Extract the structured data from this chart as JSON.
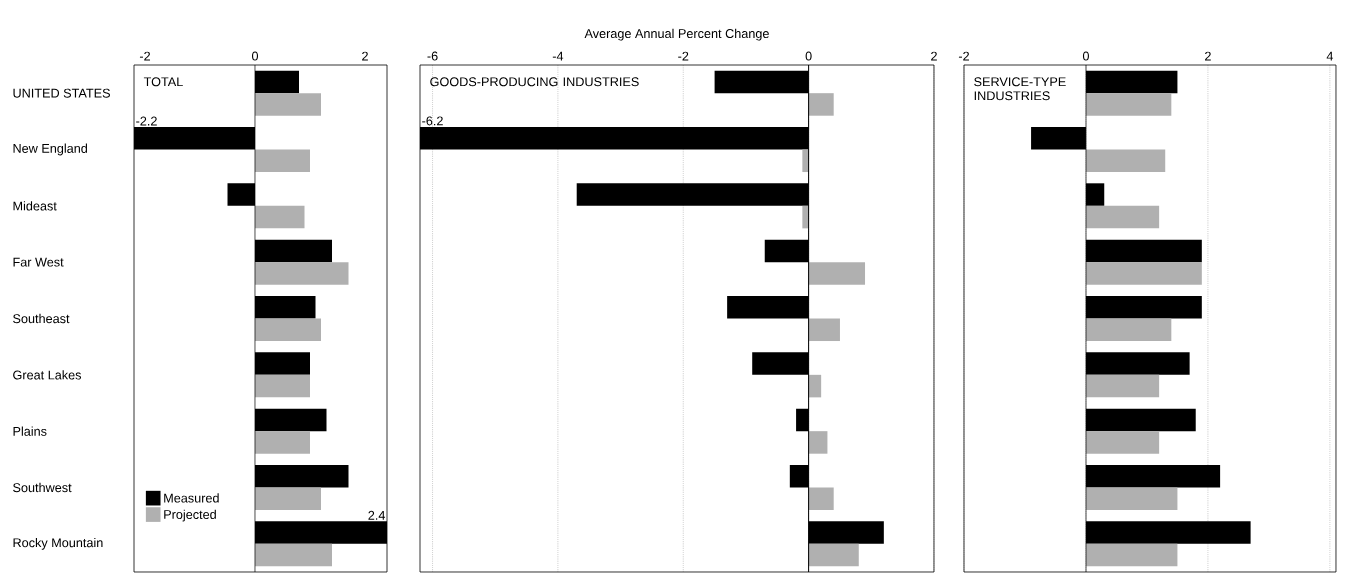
{
  "chart_data": [
    {
      "type": "bar",
      "orientation": "horizontal",
      "title": "TOTAL",
      "categories": [
        "UNITED STATES",
        "New England",
        "Mideast",
        "Far West",
        "Southeast",
        "Great Lakes",
        "Plains",
        "Southwest",
        "Rocky Mountain"
      ],
      "series": [
        {
          "name": "Measured",
          "color": "#000000",
          "values": [
            0.8,
            -2.2,
            -0.5,
            1.4,
            1.1,
            1.0,
            1.3,
            1.7,
            2.4
          ],
          "value_labels": [
            null,
            "-2.2",
            null,
            null,
            null,
            null,
            null,
            null,
            "2.4"
          ]
        },
        {
          "name": "Projected",
          "color": "#b0b0b0",
          "values": [
            1.2,
            1.0,
            0.9,
            1.7,
            1.2,
            1.0,
            1.0,
            1.2,
            1.4
          ]
        }
      ],
      "xlim": [
        -2.2,
        2.4
      ],
      "xticks": [
        -2,
        0,
        2
      ],
      "legend": "bottom left"
    },
    {
      "type": "bar",
      "orientation": "horizontal",
      "title": "GOODS-PRODUCING INDUSTRIES",
      "xlabel": "Average Annual Percent Change",
      "categories": [
        null,
        null,
        null,
        null,
        null,
        null,
        null,
        null,
        null
      ],
      "series": [
        {
          "color": "#000000",
          "values": [
            -1.5,
            -6.2,
            -3.7,
            -0.7,
            -1.3,
            -0.9,
            -0.2,
            -0.3,
            1.2
          ],
          "value_labels": [
            null,
            "-6.2",
            null,
            null,
            null,
            null,
            null,
            null,
            null
          ]
        },
        {
          "color": "#b0b0b0",
          "values": [
            0.4,
            -0.1,
            -0.1,
            0.9,
            0.5,
            0.2,
            0.3,
            0.4,
            0.8
          ]
        }
      ],
      "xlim": [
        -6.2,
        2
      ],
      "xticks": [
        -6,
        -4,
        -2,
        0,
        2
      ],
      "grid": "x"
    },
    {
      "type": "bar",
      "orientation": "horizontal",
      "title": "SERVICE-TYPE INDUSTRIES",
      "categories": [
        null,
        null,
        null,
        null,
        null,
        null,
        null,
        null,
        null
      ],
      "series": [
        {
          "color": "#000000",
          "values": [
            1.5,
            -0.9,
            0.3,
            1.9,
            1.9,
            1.7,
            1.8,
            2.2,
            2.7
          ]
        },
        {
          "color": "#b0b0b0",
          "values": [
            1.4,
            1.3,
            1.2,
            1.9,
            1.4,
            1.2,
            1.2,
            1.5,
            1.5
          ]
        }
      ],
      "xlim": [
        -2,
        4.1
      ],
      "xticks": [
        -2,
        0,
        2,
        4
      ],
      "grid": "x"
    }
  ]
}
